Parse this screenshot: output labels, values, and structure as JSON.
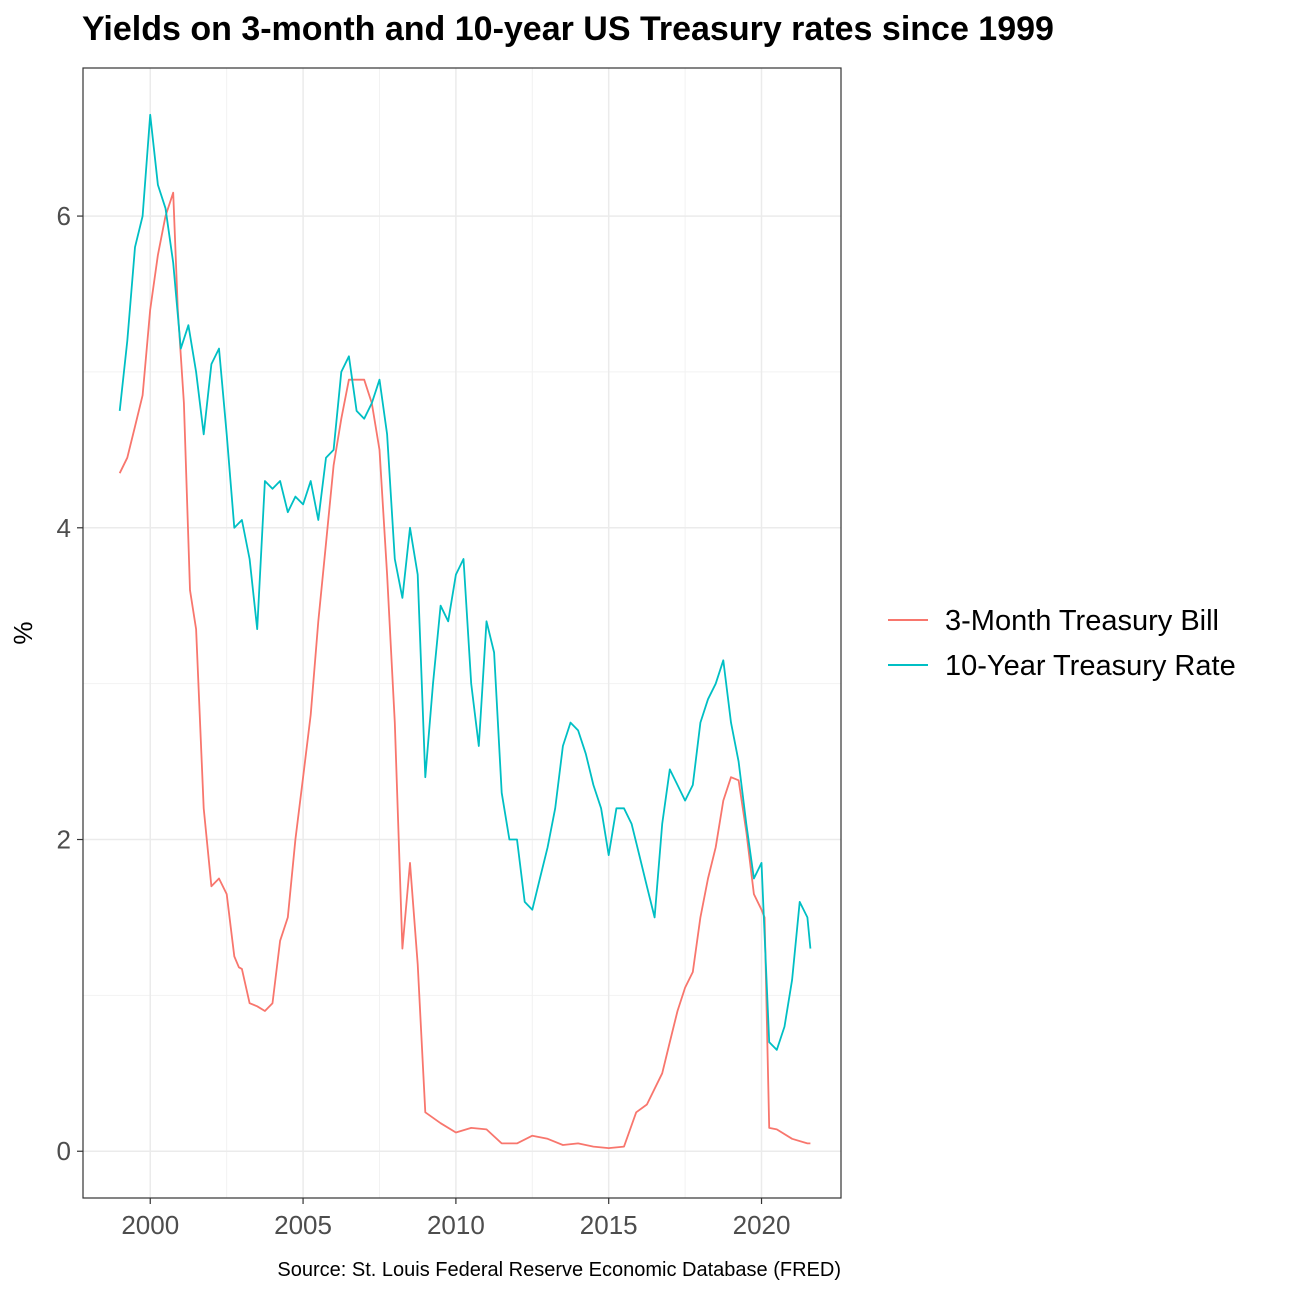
{
  "chart_data": {
    "type": "line",
    "title": "Yields on 3-month and 10-year US Treasury rates since 1999",
    "xlabel": "",
    "ylabel": "%",
    "caption": "Source: St. Louis Federal Reserve Economic Database (FRED)",
    "xlim": [
      1997.8,
      2022.6
    ],
    "ylim": [
      -0.3,
      6.95
    ],
    "x_ticks": [
      2000,
      2005,
      2010,
      2015,
      2020
    ],
    "y_ticks": [
      0,
      2,
      4,
      6
    ],
    "grid": true,
    "legend_position": "right",
    "series": [
      {
        "name": "3-Month Treasury Bill",
        "color": "#F8766D",
        "x": [
          1999.0,
          1999.25,
          1999.5,
          1999.75,
          2000.0,
          2000.25,
          2000.5,
          2000.75,
          2000.9,
          2001.1,
          2001.3,
          2001.5,
          2001.75,
          2002.0,
          2002.25,
          2002.5,
          2002.75,
          2002.9,
          2003.0,
          2003.25,
          2003.5,
          2003.75,
          2004.0,
          2004.25,
          2004.5,
          2004.75,
          2005.0,
          2005.25,
          2005.5,
          2005.75,
          2006.0,
          2006.25,
          2006.5,
          2006.75,
          2007.0,
          2007.25,
          2007.5,
          2007.75,
          2008.0,
          2008.25,
          2008.5,
          2008.75,
          2009.0,
          2009.5,
          2010.0,
          2010.5,
          2011.0,
          2011.5,
          2012.0,
          2012.5,
          2013.0,
          2013.5,
          2014.0,
          2014.5,
          2015.0,
          2015.5,
          2015.9,
          2016.25,
          2016.75,
          2017.0,
          2017.25,
          2017.5,
          2017.75,
          2018.0,
          2018.25,
          2018.5,
          2018.75,
          2019.0,
          2019.25,
          2019.5,
          2019.75,
          2020.0,
          2020.1,
          2020.25,
          2020.5,
          2021.0,
          2021.5,
          2021.6
        ],
        "y": [
          4.35,
          4.45,
          4.65,
          4.85,
          5.4,
          5.75,
          6.0,
          6.15,
          5.4,
          4.8,
          3.6,
          3.35,
          2.2,
          1.7,
          1.75,
          1.65,
          1.25,
          1.18,
          1.17,
          0.95,
          0.93,
          0.9,
          0.95,
          1.35,
          1.5,
          2.0,
          2.4,
          2.8,
          3.4,
          3.9,
          4.4,
          4.7,
          4.95,
          4.95,
          4.95,
          4.8,
          4.5,
          3.7,
          2.75,
          1.3,
          1.85,
          1.2,
          0.25,
          0.18,
          0.12,
          0.15,
          0.14,
          0.05,
          0.05,
          0.1,
          0.08,
          0.04,
          0.05,
          0.03,
          0.02,
          0.03,
          0.25,
          0.3,
          0.5,
          0.7,
          0.9,
          1.05,
          1.15,
          1.5,
          1.75,
          1.95,
          2.25,
          2.4,
          2.38,
          2.05,
          1.65,
          1.55,
          1.5,
          0.15,
          0.14,
          0.08,
          0.05,
          0.05
        ]
      },
      {
        "name": "10-Year Treasury Rate",
        "color": "#00BFC4",
        "x": [
          1999.0,
          1999.25,
          1999.5,
          1999.75,
          2000.0,
          2000.25,
          2000.5,
          2000.75,
          2001.0,
          2001.25,
          2001.5,
          2001.75,
          2002.0,
          2002.25,
          2002.5,
          2002.75,
          2003.0,
          2003.25,
          2003.5,
          2003.75,
          2004.0,
          2004.25,
          2004.5,
          2004.75,
          2005.0,
          2005.25,
          2005.5,
          2005.75,
          2006.0,
          2006.25,
          2006.5,
          2006.75,
          2007.0,
          2007.25,
          2007.5,
          2007.75,
          2008.0,
          2008.25,
          2008.5,
          2008.75,
          2009.0,
          2009.25,
          2009.5,
          2009.75,
          2010.0,
          2010.25,
          2010.5,
          2010.75,
          2011.0,
          2011.25,
          2011.5,
          2011.75,
          2012.0,
          2012.25,
          2012.5,
          2012.75,
          2013.0,
          2013.25,
          2013.5,
          2013.75,
          2014.0,
          2014.25,
          2014.5,
          2014.75,
          2015.0,
          2015.25,
          2015.5,
          2015.75,
          2016.0,
          2016.25,
          2016.5,
          2016.75,
          2017.0,
          2017.25,
          2017.5,
          2017.75,
          2018.0,
          2018.25,
          2018.5,
          2018.75,
          2019.0,
          2019.25,
          2019.5,
          2019.75,
          2020.0,
          2020.25,
          2020.5,
          2020.75,
          2021.0,
          2021.25,
          2021.5,
          2021.6
        ],
        "y": [
          4.75,
          5.2,
          5.8,
          6.0,
          6.65,
          6.2,
          6.05,
          5.7,
          5.15,
          5.3,
          5.0,
          4.6,
          5.05,
          5.15,
          4.6,
          4.0,
          4.05,
          3.8,
          3.35,
          4.3,
          4.25,
          4.3,
          4.1,
          4.2,
          4.15,
          4.3,
          4.05,
          4.45,
          4.5,
          5.0,
          5.1,
          4.75,
          4.7,
          4.8,
          4.95,
          4.6,
          3.8,
          3.55,
          4.0,
          3.7,
          2.4,
          3.0,
          3.5,
          3.4,
          3.7,
          3.8,
          3.0,
          2.6,
          3.4,
          3.2,
          2.3,
          2.0,
          2.0,
          1.6,
          1.55,
          1.75,
          1.95,
          2.2,
          2.6,
          2.75,
          2.7,
          2.55,
          2.35,
          2.2,
          1.9,
          2.2,
          2.2,
          2.1,
          1.9,
          1.7,
          1.5,
          2.1,
          2.45,
          2.35,
          2.25,
          2.35,
          2.75,
          2.9,
          3.0,
          3.15,
          2.75,
          2.5,
          2.1,
          1.75,
          1.85,
          0.7,
          0.65,
          0.8,
          1.1,
          1.6,
          1.5,
          1.3
        ]
      }
    ]
  }
}
